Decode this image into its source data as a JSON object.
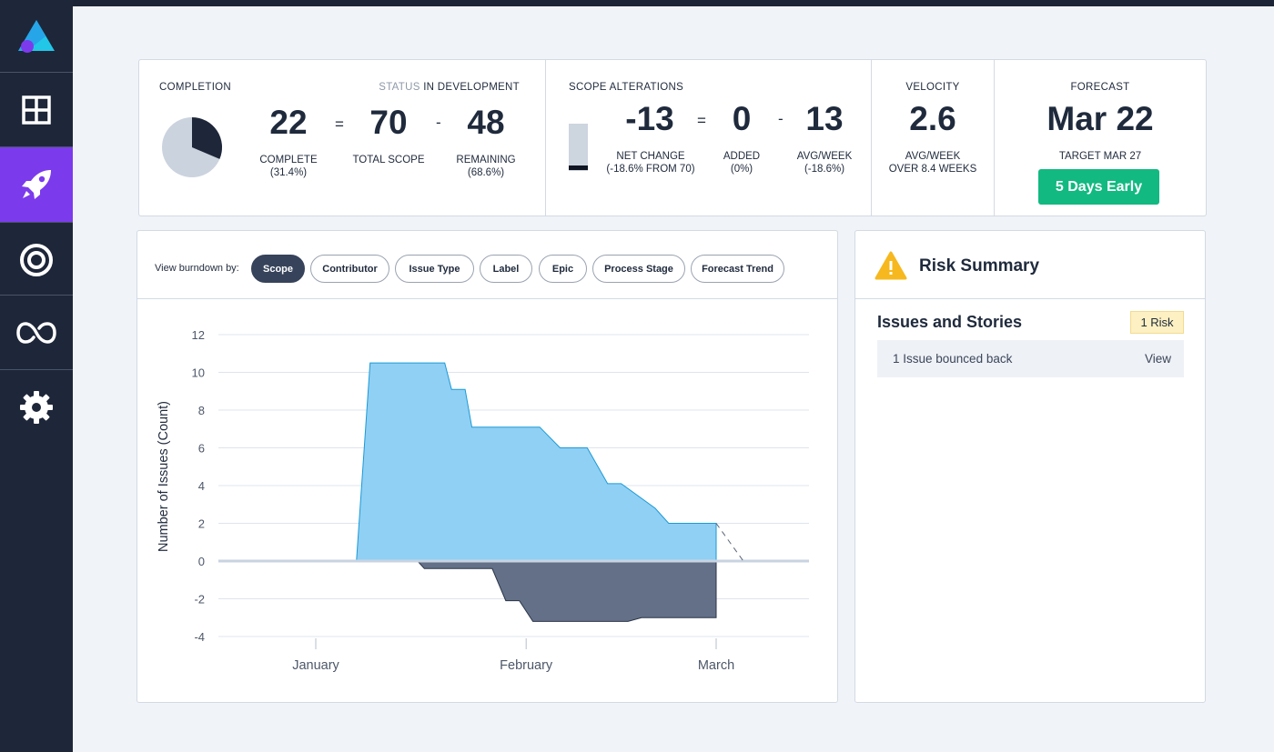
{
  "sidebar": {
    "items": [
      {
        "icon": "dashboard-grid-icon"
      },
      {
        "icon": "rocket-icon",
        "active": true
      },
      {
        "icon": "target-icon"
      },
      {
        "icon": "infinity-loop-icon"
      },
      {
        "icon": "gear-icon"
      }
    ],
    "colors": {
      "background": "#1e2639",
      "active": "#7c3aed"
    }
  },
  "completion": {
    "title": "COMPLETION",
    "status_label": "STATUS",
    "status_value": "IN DEVELOPMENT",
    "pie_complete_fraction": 0.314,
    "complete_value": "22",
    "complete_label": "COMPLETE",
    "complete_pct": "(31.4%)",
    "eq": "=",
    "total_value": "70",
    "total_label": "TOTAL SCOPE",
    "minus": "-",
    "remaining_value": "48",
    "remaining_label": "REMAINING",
    "remaining_pct": "(68.6%)"
  },
  "scope": {
    "title": "SCOPE ALTERATIONS",
    "net_value": "-13",
    "net_label": "NET CHANGE",
    "net_sub": "(-18.6% FROM 70)",
    "eq": "=",
    "added_value": "0",
    "added_label": "ADDED",
    "added_sub": "(0%)",
    "minus": "-",
    "avg_value": "13",
    "avg_label": "AVG/WEEK",
    "avg_sub": "(-18.6%)"
  },
  "velocity": {
    "title": "VELOCITY",
    "value": "2.6",
    "label": "AVG/WEEK",
    "sub": "OVER 8.4 WEEKS"
  },
  "forecast": {
    "title": "FORECAST",
    "value": "Mar 22",
    "target": "TARGET MAR 27",
    "badge": "5 Days Early",
    "badge_color": "#12b981"
  },
  "burndown": {
    "view_label": "View burndown by:",
    "filters": [
      "Scope",
      "Contributor",
      "Issue Type",
      "Label",
      "Epic",
      "Process Stage",
      "Forecast Trend"
    ],
    "active_filter": "Scope"
  },
  "chart_data": {
    "type": "area",
    "ylabel": "Number of Issues (Count)",
    "xlabel": "",
    "ylim": [
      -4,
      12
    ],
    "yticks": [
      12,
      10,
      8,
      6,
      4,
      2,
      0,
      -2,
      -4
    ],
    "xticks": [
      "January",
      "February",
      "March"
    ],
    "grid": true,
    "series": [
      {
        "color": "#90d0f4",
        "stroke": "#1a9ad6",
        "points": [
          [
            "Jan 1",
            0
          ],
          [
            "Jan 7",
            0
          ],
          [
            "Jan 9",
            10.5
          ],
          [
            "Jan 20",
            10.5
          ],
          [
            "Jan 21",
            9.1
          ],
          [
            "Jan 23",
            9.1
          ],
          [
            "Jan 24",
            7.1
          ],
          [
            "Feb 3",
            7.1
          ],
          [
            "Feb 6",
            6
          ],
          [
            "Feb 10",
            6
          ],
          [
            "Feb 13",
            4.1
          ],
          [
            "Feb 15",
            4.1
          ],
          [
            "Feb 20",
            2.8
          ],
          [
            "Feb 22",
            2
          ],
          [
            "Mar 1",
            2
          ],
          [
            "Mar 1",
            0
          ]
        ]
      },
      {
        "color": "#637088",
        "stroke": "#2b3548",
        "points": [
          [
            "Jan 16",
            0
          ],
          [
            "Jan 17",
            -0.4
          ],
          [
            "Jan 27",
            -0.4
          ],
          [
            "Jan 29",
            -2.1
          ],
          [
            "Jan 31",
            -2.1
          ],
          [
            "Feb 2",
            -3.2
          ],
          [
            "Feb 16",
            -3.2
          ],
          [
            "Feb 18",
            -3.0
          ],
          [
            "Mar 1",
            -3.0
          ],
          [
            "Mar 1",
            0
          ]
        ]
      }
    ],
    "forecast_line": {
      "from": [
        "Mar 1",
        2
      ],
      "to": [
        "Mar 5",
        0
      ],
      "style": "dashed"
    }
  },
  "risk": {
    "title": "Risk Summary",
    "section_title": "Issues and Stories",
    "badge": "1 Risk",
    "items": [
      {
        "text": "1 Issue bounced back",
        "action": "View"
      }
    ]
  }
}
